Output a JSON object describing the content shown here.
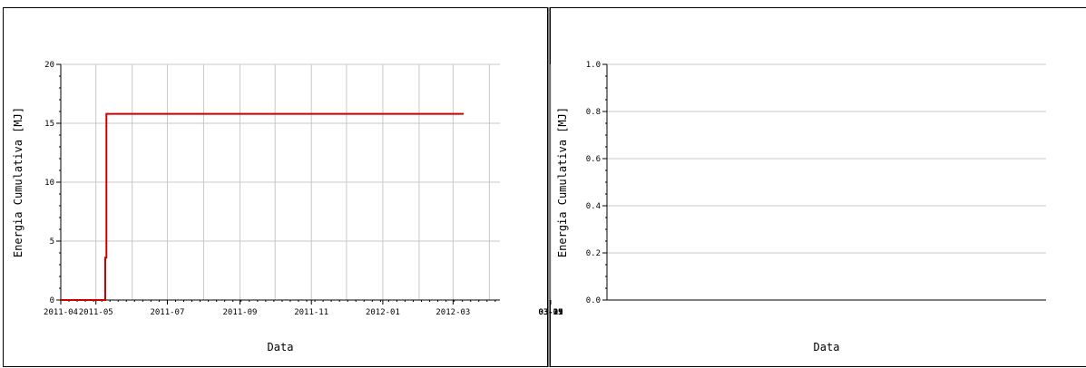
{
  "chart_data": [
    {
      "type": "line",
      "xlabel": "Data",
      "ylabel": "Energia Cumulativa [MJ]",
      "x_axis_type": "date",
      "xlim": [
        "2011-04-01",
        "2012-04-10"
      ],
      "ylim": [
        0,
        20
      ],
      "x_ticks": [
        {
          "value": "2011-04-01",
          "label": "2011-04"
        },
        {
          "value": "2011-05-01",
          "label": "2011-05"
        },
        {
          "value": "2011-07-01",
          "label": "2011-07"
        },
        {
          "value": "2011-09-01",
          "label": "2011-09"
        },
        {
          "value": "2011-11-01",
          "label": "2011-11"
        },
        {
          "value": "2012-01-01",
          "label": "2012-01"
        },
        {
          "value": "2012-03-01",
          "label": "2012-03"
        }
      ],
      "y_ticks": [
        0,
        5,
        10,
        15,
        20
      ],
      "y_tick_labels": [
        "0",
        "5",
        "10",
        "15",
        "20"
      ],
      "grid": true,
      "series": [
        {
          "color": "#cc0000",
          "points": [
            {
              "x": "2011-04-01",
              "y": 0
            },
            {
              "x": "2011-05-09",
              "y": 0
            },
            {
              "x": "2011-05-09",
              "y": 3.6
            },
            {
              "x": "2011-05-10",
              "y": 3.6
            },
            {
              "x": "2011-05-10",
              "y": 15.8
            },
            {
              "x": "2012-03-10",
              "y": 15.8
            }
          ]
        }
      ]
    },
    {
      "type": "line",
      "xlabel": "Data",
      "ylabel": "Energia Cumulativa [MJ]",
      "x_axis_type": "date",
      "xlim": [
        "03-01",
        "04-02"
      ],
      "ylim": [
        0,
        1.0
      ],
      "x_ticks": [
        {
          "value": 1,
          "label": "03-01"
        },
        {
          "value": 5,
          "label": "03-05"
        },
        {
          "value": 9,
          "label": "03-09"
        },
        {
          "value": 13,
          "label": "03-13"
        },
        {
          "value": 17,
          "label": "03-17"
        },
        {
          "value": 21,
          "label": "03-21"
        },
        {
          "value": 25,
          "label": "03-25"
        },
        {
          "value": 29,
          "label": "03-29"
        }
      ],
      "y_ticks": [
        0,
        0.2,
        0.4,
        0.6,
        0.8,
        1.0
      ],
      "y_tick_labels": [
        "0.0",
        "0.2",
        "0.4",
        "0.6",
        "0.8",
        "1.0"
      ],
      "grid": true,
      "series": [
        {
          "color": "#cc0000",
          "points": [
            {
              "x": 1,
              "y": 0
            },
            {
              "x": 32,
              "y": 0
            }
          ]
        }
      ]
    }
  ]
}
